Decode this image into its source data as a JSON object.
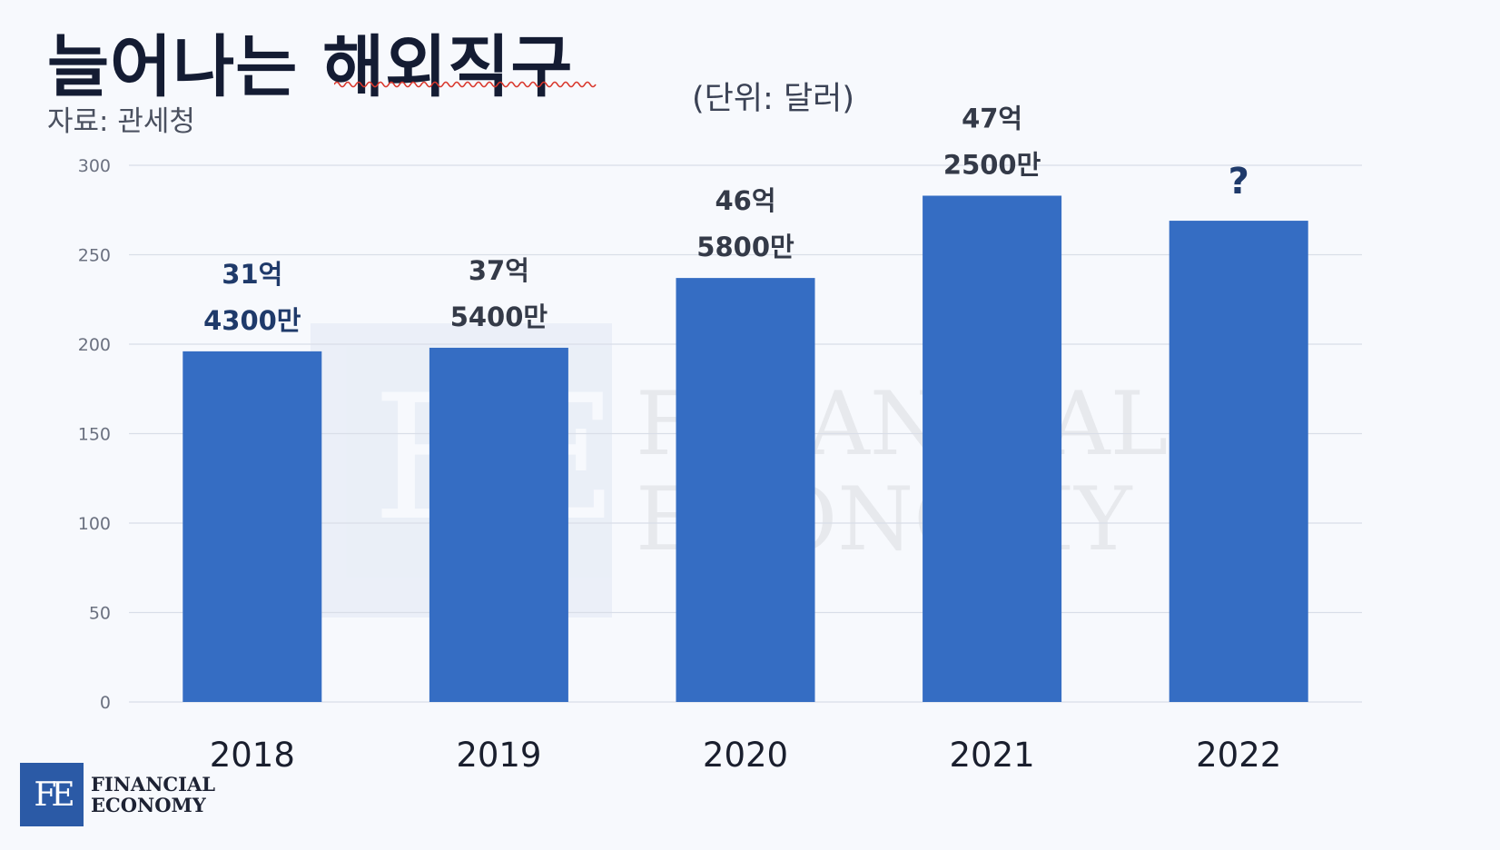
{
  "title": "늘어나는 해외직구",
  "source": "자료: 관세청",
  "unit": "(단위: 달러)",
  "logo": {
    "mark": "FE",
    "line1": "FINANCIAL",
    "line2": "ECONOMY"
  },
  "watermark": {
    "mark": "FE",
    "line1": "FINANCIAL",
    "line2": "ECONOMY"
  },
  "colors": {
    "bar": "#356dc3",
    "label_blue": "#1f3a6a",
    "label_dark": "#343a48",
    "grid": "#d9dee8",
    "axis_text": "#6b7180"
  },
  "chart_data": {
    "type": "bar",
    "categories": [
      "2018",
      "2019",
      "2020",
      "2021",
      "2022"
    ],
    "values": [
      196,
      198,
      237,
      283,
      269
    ],
    "ylim": [
      0,
      300
    ],
    "yticks": [
      "0",
      "50",
      "100",
      "150",
      "200",
      "250",
      "300"
    ],
    "data_labels": [
      {
        "line1": "31억",
        "line2": "4300만",
        "color": "#1f3a6a"
      },
      {
        "line1": "37억",
        "line2": "5400만",
        "color": "#343a48"
      },
      {
        "line1": "46억",
        "line2": "5800만",
        "color": "#343a48"
      },
      {
        "line1": "47억",
        "line2": "2500만",
        "color": "#343a48"
      },
      {
        "line1": "?",
        "line2": "",
        "color": "#1f3a6a"
      }
    ],
    "grid": true,
    "legend": "none",
    "title": "늘어나는 해외직구"
  }
}
